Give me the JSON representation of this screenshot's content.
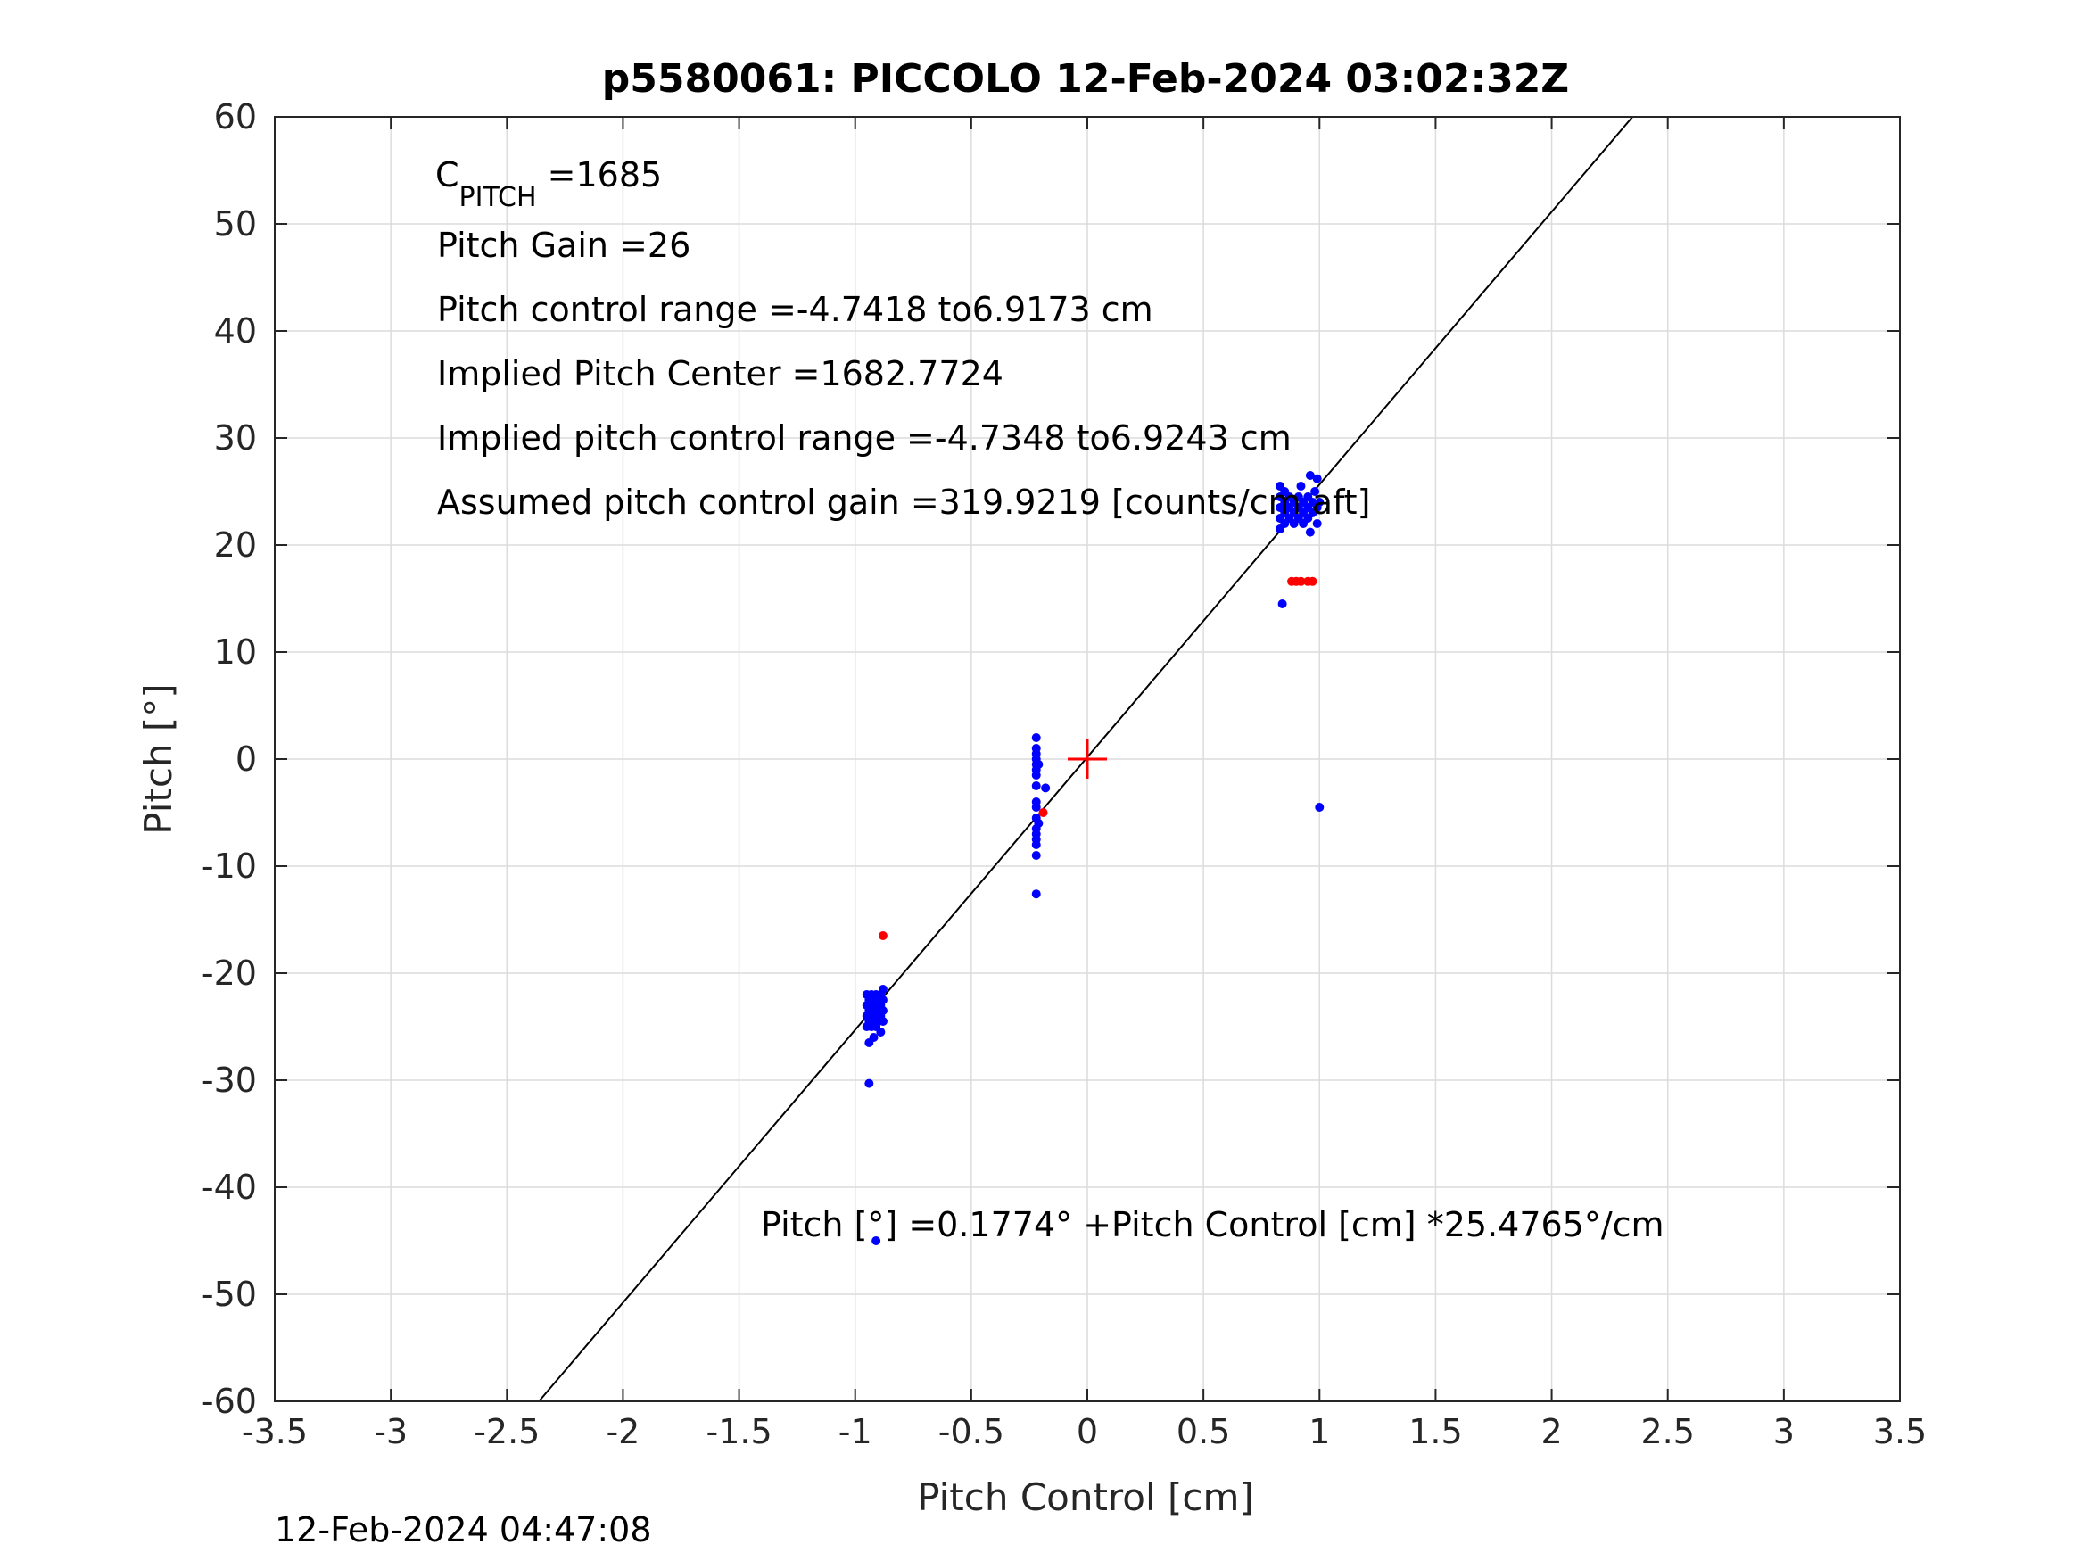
{
  "chart_data": {
    "type": "scatter",
    "title": "p5580061: PICCOLO 12-Feb-2024 03:02:32Z",
    "xlabel": "Pitch Control [cm]",
    "ylabel": "Pitch [°]",
    "xlim": [
      -3.5,
      3.5
    ],
    "ylim": [
      -60,
      60
    ],
    "x_ticks": [
      -3.5,
      -3,
      -2.5,
      -2,
      -1.5,
      -1,
      -0.5,
      0,
      0.5,
      1,
      1.5,
      2,
      2.5,
      3,
      3.5
    ],
    "y_ticks": [
      -60,
      -50,
      -40,
      -30,
      -20,
      -10,
      0,
      10,
      20,
      30,
      40,
      50,
      60
    ],
    "grid": true,
    "fit_line": {
      "intercept": 0.1774,
      "slope": 25.4765,
      "color": "#000000"
    },
    "center_marker": {
      "x": 0,
      "y": 0,
      "color": "#ff0000",
      "shape": "plus"
    },
    "series": [
      {
        "color": "#0000ff",
        "points": [
          [
            -0.95,
            -22.0
          ],
          [
            -0.95,
            -23.0
          ],
          [
            -0.95,
            -24.0
          ],
          [
            -0.95,
            -25.0
          ],
          [
            -0.94,
            -22.5
          ],
          [
            -0.94,
            -23.5
          ],
          [
            -0.94,
            -24.5
          ],
          [
            -0.94,
            -26.5
          ],
          [
            -0.94,
            -30.3
          ],
          [
            -0.93,
            -22.0
          ],
          [
            -0.93,
            -23.0
          ],
          [
            -0.93,
            -24.0
          ],
          [
            -0.93,
            -25.0
          ],
          [
            -0.92,
            -22.5
          ],
          [
            -0.92,
            -23.5
          ],
          [
            -0.92,
            -24.5
          ],
          [
            -0.92,
            -26.0
          ],
          [
            -0.91,
            -22.0
          ],
          [
            -0.91,
            -23.0
          ],
          [
            -0.91,
            -24.0
          ],
          [
            -0.91,
            -25.0
          ],
          [
            -0.9,
            -22.5
          ],
          [
            -0.9,
            -23.5
          ],
          [
            -0.9,
            -24.5
          ],
          [
            -0.89,
            -22.0
          ],
          [
            -0.89,
            -23.0
          ],
          [
            -0.89,
            -24.0
          ],
          [
            -0.89,
            -25.5
          ],
          [
            -0.88,
            -21.5
          ],
          [
            -0.88,
            -22.5
          ],
          [
            -0.88,
            -23.5
          ],
          [
            -0.88,
            -24.5
          ],
          [
            -0.91,
            -45.0
          ],
          [
            -0.22,
            2.0
          ],
          [
            -0.22,
            1.0
          ],
          [
            -0.22,
            0.5
          ],
          [
            -0.22,
            0.0
          ],
          [
            -0.22,
            -0.5
          ],
          [
            -0.22,
            -1.0
          ],
          [
            -0.22,
            -1.5
          ],
          [
            -0.22,
            -2.5
          ],
          [
            -0.22,
            -4.0
          ],
          [
            -0.22,
            -4.5
          ],
          [
            -0.22,
            -5.5
          ],
          [
            -0.22,
            -6.5
          ],
          [
            -0.22,
            -7.0
          ],
          [
            -0.22,
            -7.5
          ],
          [
            -0.22,
            -8.0
          ],
          [
            -0.22,
            -9.0
          ],
          [
            -0.22,
            -12.6
          ],
          [
            -0.21,
            -0.5
          ],
          [
            -0.21,
            -6.0
          ],
          [
            -0.18,
            -2.7
          ],
          [
            0.83,
            25.5
          ],
          [
            0.83,
            24.5
          ],
          [
            0.83,
            23.5
          ],
          [
            0.83,
            22.5
          ],
          [
            0.83,
            21.5
          ],
          [
            0.84,
            14.5
          ],
          [
            0.85,
            25.0
          ],
          [
            0.85,
            24.0
          ],
          [
            0.85,
            23.0
          ],
          [
            0.85,
            22.0
          ],
          [
            0.87,
            24.5
          ],
          [
            0.87,
            23.5
          ],
          [
            0.87,
            22.5
          ],
          [
            0.89,
            24.0
          ],
          [
            0.89,
            23.0
          ],
          [
            0.89,
            22.0
          ],
          [
            0.91,
            24.5
          ],
          [
            0.91,
            23.5
          ],
          [
            0.91,
            22.5
          ],
          [
            0.92,
            25.5
          ],
          [
            0.93,
            24.0
          ],
          [
            0.93,
            23.0
          ],
          [
            0.93,
            22.0
          ],
          [
            0.95,
            24.5
          ],
          [
            0.95,
            23.5
          ],
          [
            0.95,
            22.5
          ],
          [
            0.96,
            26.5
          ],
          [
            0.96,
            21.2
          ],
          [
            0.97,
            24.0
          ],
          [
            0.97,
            23.0
          ],
          [
            0.98,
            25.0
          ],
          [
            0.99,
            26.2
          ],
          [
            0.99,
            23.5
          ],
          [
            0.99,
            22.0
          ],
          [
            1.0,
            24.0
          ],
          [
            1.0,
            -4.5
          ]
        ]
      },
      {
        "color": "#ff0000",
        "points": [
          [
            -0.88,
            -16.5
          ],
          [
            -0.19,
            -5.0
          ],
          [
            0.88,
            16.6
          ],
          [
            0.9,
            16.6
          ],
          [
            0.92,
            16.6
          ],
          [
            0.95,
            16.6
          ],
          [
            0.97,
            16.6
          ]
        ]
      }
    ]
  },
  "annotations": {
    "c_pitch_main": "C",
    "c_pitch_sub": "PITCH",
    "c_pitch_value": " =1685",
    "pitch_gain": "Pitch Gain =26",
    "pitch_control_range": "Pitch control range =-4.7418 to6.9173 cm",
    "implied_center": "Implied Pitch Center =1682.7724",
    "implied_range": "Implied pitch control range =-4.7348 to6.9243 cm",
    "assumed_gain": "Assumed pitch control gain =319.9219 [counts/cm aft]",
    "fit_equation": "Pitch [°] =0.1774° +Pitch Control [cm] *25.4765°/cm"
  },
  "timestamp": "12-Feb-2024 04:47:08"
}
